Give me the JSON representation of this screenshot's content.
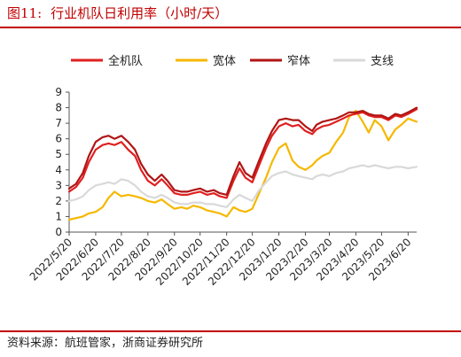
{
  "figure": {
    "label": "图11:",
    "title": "行业机队日利用率（小时/天）"
  },
  "source": "资料来源：航班管家，浙商证券研究所",
  "colors": {
    "accent": "#c00000",
    "all_fleet": "#e02020",
    "wide_body": "#f5b800",
    "narrow_body": "#b01515",
    "regional": "#d9d9d9"
  },
  "chart_data": {
    "type": "line",
    "x_type": "date",
    "x_range": [
      "2022-05-20",
      "2023-06-30"
    ],
    "x_ticks": [
      "2022/5/20",
      "2022/6/20",
      "2022/7/20",
      "2022/8/20",
      "2022/9/20",
      "2022/10/20",
      "2022/11/20",
      "2022/12/20",
      "2023/1/20",
      "2023/2/20",
      "2023/3/20",
      "2023/4/20",
      "2023/5/20",
      "2023/6/20"
    ],
    "ylim": [
      0,
      9
    ],
    "y_ticks": [
      0,
      1,
      2,
      3,
      4,
      5,
      6,
      7,
      8,
      9
    ],
    "legend_position": "top",
    "grid": false,
    "series": [
      {
        "name": "全机队",
        "color_key": "all_fleet",
        "points": [
          [
            "2022-05-20",
            2.6
          ],
          [
            "2022-05-28",
            2.9
          ],
          [
            "2022-06-05",
            3.5
          ],
          [
            "2022-06-12",
            4.5
          ],
          [
            "2022-06-20",
            5.3
          ],
          [
            "2022-06-28",
            5.6
          ],
          [
            "2022-07-05",
            5.7
          ],
          [
            "2022-07-12",
            5.6
          ],
          [
            "2022-07-20",
            5.8
          ],
          [
            "2022-07-28",
            5.3
          ],
          [
            "2022-08-05",
            4.9
          ],
          [
            "2022-08-12",
            4.0
          ],
          [
            "2022-08-20",
            3.3
          ],
          [
            "2022-08-28",
            3.0
          ],
          [
            "2022-09-05",
            3.4
          ],
          [
            "2022-09-12",
            3.0
          ],
          [
            "2022-09-20",
            2.5
          ],
          [
            "2022-09-28",
            2.4
          ],
          [
            "2022-10-05",
            2.4
          ],
          [
            "2022-10-12",
            2.5
          ],
          [
            "2022-10-20",
            2.6
          ],
          [
            "2022-10-28",
            2.4
          ],
          [
            "2022-11-05",
            2.5
          ],
          [
            "2022-11-12",
            2.3
          ],
          [
            "2022-11-20",
            2.2
          ],
          [
            "2022-11-28",
            3.3
          ],
          [
            "2022-12-05",
            4.1
          ],
          [
            "2022-12-12",
            3.5
          ],
          [
            "2022-12-20",
            3.2
          ],
          [
            "2022-12-28",
            4.3
          ],
          [
            "2023-01-05",
            5.4
          ],
          [
            "2023-01-12",
            6.2
          ],
          [
            "2023-01-20",
            6.8
          ],
          [
            "2023-01-28",
            7.0
          ],
          [
            "2023-02-05",
            6.8
          ],
          [
            "2023-02-12",
            6.9
          ],
          [
            "2023-02-20",
            6.5
          ],
          [
            "2023-02-28",
            6.3
          ],
          [
            "2023-03-05",
            6.6
          ],
          [
            "2023-03-12",
            6.8
          ],
          [
            "2023-03-20",
            6.9
          ],
          [
            "2023-03-28",
            7.1
          ],
          [
            "2023-04-05",
            7.3
          ],
          [
            "2023-04-12",
            7.5
          ],
          [
            "2023-04-20",
            7.6
          ],
          [
            "2023-04-28",
            7.7
          ],
          [
            "2023-05-05",
            7.5
          ],
          [
            "2023-05-12",
            7.4
          ],
          [
            "2023-05-20",
            7.4
          ],
          [
            "2023-05-28",
            7.2
          ],
          [
            "2023-06-05",
            7.5
          ],
          [
            "2023-06-12",
            7.4
          ],
          [
            "2023-06-20",
            7.6
          ],
          [
            "2023-06-30",
            7.9
          ]
        ]
      },
      {
        "name": "宽体",
        "color_key": "wide_body",
        "points": [
          [
            "2022-05-20",
            0.8
          ],
          [
            "2022-05-28",
            0.9
          ],
          [
            "2022-06-05",
            1.0
          ],
          [
            "2022-06-12",
            1.2
          ],
          [
            "2022-06-20",
            1.3
          ],
          [
            "2022-06-28",
            1.6
          ],
          [
            "2022-07-05",
            2.2
          ],
          [
            "2022-07-12",
            2.6
          ],
          [
            "2022-07-20",
            2.3
          ],
          [
            "2022-07-28",
            2.4
          ],
          [
            "2022-08-05",
            2.3
          ],
          [
            "2022-08-12",
            2.2
          ],
          [
            "2022-08-20",
            2.0
          ],
          [
            "2022-08-28",
            1.9
          ],
          [
            "2022-09-05",
            2.1
          ],
          [
            "2022-09-12",
            1.8
          ],
          [
            "2022-09-20",
            1.5
          ],
          [
            "2022-09-28",
            1.6
          ],
          [
            "2022-10-05",
            1.5
          ],
          [
            "2022-10-12",
            1.7
          ],
          [
            "2022-10-20",
            1.6
          ],
          [
            "2022-10-28",
            1.4
          ],
          [
            "2022-11-05",
            1.3
          ],
          [
            "2022-11-12",
            1.2
          ],
          [
            "2022-11-20",
            1.0
          ],
          [
            "2022-11-28",
            1.6
          ],
          [
            "2022-12-05",
            1.4
          ],
          [
            "2022-12-12",
            1.3
          ],
          [
            "2022-12-20",
            1.5
          ],
          [
            "2022-12-28",
            2.5
          ],
          [
            "2023-01-05",
            3.5
          ],
          [
            "2023-01-12",
            4.5
          ],
          [
            "2023-01-20",
            5.4
          ],
          [
            "2023-01-28",
            5.7
          ],
          [
            "2023-02-05",
            4.6
          ],
          [
            "2023-02-12",
            4.2
          ],
          [
            "2023-02-20",
            4.0
          ],
          [
            "2023-02-28",
            4.3
          ],
          [
            "2023-03-05",
            4.6
          ],
          [
            "2023-03-12",
            4.9
          ],
          [
            "2023-03-20",
            5.1
          ],
          [
            "2023-03-28",
            5.8
          ],
          [
            "2023-04-05",
            6.4
          ],
          [
            "2023-04-12",
            7.4
          ],
          [
            "2023-04-20",
            7.8
          ],
          [
            "2023-04-28",
            7.1
          ],
          [
            "2023-05-05",
            6.4
          ],
          [
            "2023-05-12",
            7.2
          ],
          [
            "2023-05-20",
            6.8
          ],
          [
            "2023-05-28",
            5.9
          ],
          [
            "2023-06-05",
            6.6
          ],
          [
            "2023-06-12",
            6.9
          ],
          [
            "2023-06-20",
            7.3
          ],
          [
            "2023-06-30",
            7.1
          ]
        ]
      },
      {
        "name": "窄体",
        "color_key": "narrow_body",
        "points": [
          [
            "2022-05-20",
            2.8
          ],
          [
            "2022-05-28",
            3.1
          ],
          [
            "2022-06-05",
            3.8
          ],
          [
            "2022-06-12",
            4.9
          ],
          [
            "2022-06-20",
            5.8
          ],
          [
            "2022-06-28",
            6.1
          ],
          [
            "2022-07-05",
            6.2
          ],
          [
            "2022-07-12",
            6.0
          ],
          [
            "2022-07-20",
            6.2
          ],
          [
            "2022-07-28",
            5.8
          ],
          [
            "2022-08-05",
            5.3
          ],
          [
            "2022-08-12",
            4.4
          ],
          [
            "2022-08-20",
            3.7
          ],
          [
            "2022-08-28",
            3.3
          ],
          [
            "2022-09-05",
            3.7
          ],
          [
            "2022-09-12",
            3.3
          ],
          [
            "2022-09-20",
            2.7
          ],
          [
            "2022-09-28",
            2.6
          ],
          [
            "2022-10-05",
            2.6
          ],
          [
            "2022-10-12",
            2.7
          ],
          [
            "2022-10-20",
            2.8
          ],
          [
            "2022-10-28",
            2.6
          ],
          [
            "2022-11-05",
            2.7
          ],
          [
            "2022-11-12",
            2.5
          ],
          [
            "2022-11-20",
            2.4
          ],
          [
            "2022-11-28",
            3.6
          ],
          [
            "2022-12-05",
            4.5
          ],
          [
            "2022-12-12",
            3.8
          ],
          [
            "2022-12-20",
            3.5
          ],
          [
            "2022-12-28",
            4.6
          ],
          [
            "2023-01-05",
            5.7
          ],
          [
            "2023-01-12",
            6.5
          ],
          [
            "2023-01-20",
            7.2
          ],
          [
            "2023-01-28",
            7.3
          ],
          [
            "2023-02-05",
            7.2
          ],
          [
            "2023-02-12",
            7.2
          ],
          [
            "2023-02-20",
            6.8
          ],
          [
            "2023-02-28",
            6.5
          ],
          [
            "2023-03-05",
            6.9
          ],
          [
            "2023-03-12",
            7.1
          ],
          [
            "2023-03-20",
            7.2
          ],
          [
            "2023-03-28",
            7.3
          ],
          [
            "2023-04-05",
            7.5
          ],
          [
            "2023-04-12",
            7.7
          ],
          [
            "2023-04-20",
            7.7
          ],
          [
            "2023-04-28",
            7.8
          ],
          [
            "2023-05-05",
            7.6
          ],
          [
            "2023-05-12",
            7.5
          ],
          [
            "2023-05-20",
            7.5
          ],
          [
            "2023-05-28",
            7.3
          ],
          [
            "2023-06-05",
            7.6
          ],
          [
            "2023-06-12",
            7.5
          ],
          [
            "2023-06-20",
            7.7
          ],
          [
            "2023-06-30",
            8.0
          ]
        ]
      },
      {
        "name": "支线",
        "color_key": "regional",
        "points": [
          [
            "2022-05-20",
            2.0
          ],
          [
            "2022-05-28",
            2.1
          ],
          [
            "2022-06-05",
            2.3
          ],
          [
            "2022-06-12",
            2.7
          ],
          [
            "2022-06-20",
            3.0
          ],
          [
            "2022-06-28",
            3.1
          ],
          [
            "2022-07-05",
            3.2
          ],
          [
            "2022-07-12",
            3.1
          ],
          [
            "2022-07-20",
            3.4
          ],
          [
            "2022-07-28",
            3.3
          ],
          [
            "2022-08-05",
            3.0
          ],
          [
            "2022-08-12",
            2.6
          ],
          [
            "2022-08-20",
            2.3
          ],
          [
            "2022-08-28",
            2.2
          ],
          [
            "2022-09-05",
            2.4
          ],
          [
            "2022-09-12",
            2.2
          ],
          [
            "2022-09-20",
            1.9
          ],
          [
            "2022-09-28",
            1.8
          ],
          [
            "2022-10-05",
            1.8
          ],
          [
            "2022-10-12",
            1.9
          ],
          [
            "2022-10-20",
            1.9
          ],
          [
            "2022-10-28",
            1.8
          ],
          [
            "2022-11-05",
            1.8
          ],
          [
            "2022-11-12",
            1.7
          ],
          [
            "2022-11-20",
            1.6
          ],
          [
            "2022-11-28",
            2.1
          ],
          [
            "2022-12-05",
            2.4
          ],
          [
            "2022-12-12",
            2.2
          ],
          [
            "2022-12-20",
            2.0
          ],
          [
            "2022-12-28",
            2.7
          ],
          [
            "2023-01-05",
            3.2
          ],
          [
            "2023-01-12",
            3.6
          ],
          [
            "2023-01-20",
            3.8
          ],
          [
            "2023-01-28",
            3.9
          ],
          [
            "2023-02-05",
            3.7
          ],
          [
            "2023-02-12",
            3.6
          ],
          [
            "2023-02-20",
            3.5
          ],
          [
            "2023-02-28",
            3.4
          ],
          [
            "2023-03-05",
            3.6
          ],
          [
            "2023-03-12",
            3.7
          ],
          [
            "2023-03-20",
            3.6
          ],
          [
            "2023-03-28",
            3.8
          ],
          [
            "2023-04-05",
            3.9
          ],
          [
            "2023-04-12",
            4.1
          ],
          [
            "2023-04-20",
            4.2
          ],
          [
            "2023-04-28",
            4.3
          ],
          [
            "2023-05-05",
            4.2
          ],
          [
            "2023-05-12",
            4.3
          ],
          [
            "2023-05-20",
            4.2
          ],
          [
            "2023-05-28",
            4.1
          ],
          [
            "2023-06-05",
            4.2
          ],
          [
            "2023-06-12",
            4.2
          ],
          [
            "2023-06-20",
            4.1
          ],
          [
            "2023-06-30",
            4.2
          ]
        ]
      }
    ]
  }
}
